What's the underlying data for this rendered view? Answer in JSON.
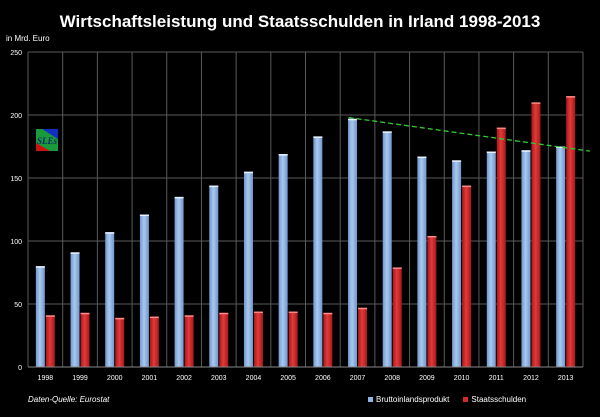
{
  "chart_data": {
    "type": "bar",
    "title": "Wirtschaftsleistung und Staatsschulden in Irland 1998-2013",
    "ylabel": "in Mrd. Euro",
    "xlabel": "",
    "ylim": [
      0,
      250
    ],
    "yticks": [
      0,
      50,
      100,
      150,
      200,
      250
    ],
    "grid": true,
    "legend_position": "bottom-right",
    "categories": [
      "1998",
      "1999",
      "2000",
      "2001",
      "2002",
      "2003",
      "2004",
      "2005",
      "2006",
      "2007",
      "2008",
      "2009",
      "2010",
      "2011",
      "2012",
      "2013"
    ],
    "series": [
      {
        "name": "Bruttoinlandsprodukt",
        "color": "#8db4e2",
        "values": [
          80,
          91,
          107,
          121,
          135,
          144,
          155,
          169,
          183,
          197,
          187,
          167,
          164,
          171,
          172,
          175
        ]
      },
      {
        "name": "Staatsschulden",
        "color": "#d42a2a",
        "values": [
          41,
          43,
          39,
          40,
          41,
          43,
          44,
          44,
          43,
          47,
          79,
          104,
          144,
          190,
          210,
          215
        ]
      }
    ],
    "trendline": {
      "color": "#33cc33",
      "style": "dashed",
      "from": {
        "x": "2007",
        "y": 198
      },
      "to": {
        "x": "2013",
        "y": 174
      }
    },
    "source": "Daten-Quelle: Eurostat"
  },
  "logo": {
    "text": "SLEs"
  }
}
